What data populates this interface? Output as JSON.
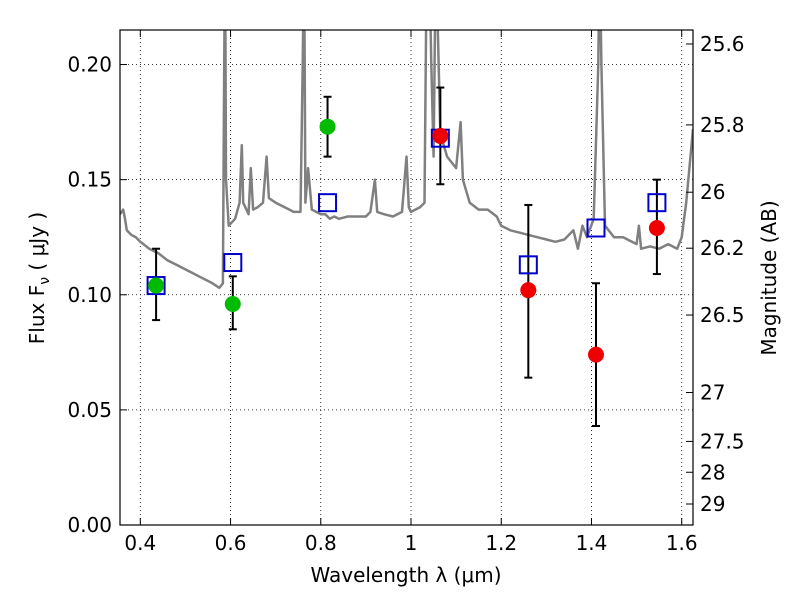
{
  "chart_data": {
    "type": "scatter",
    "xlabel": "Wavelength  λ (μm)",
    "ylabel": "Flux  F",
    "ylabel_sub": "ν",
    "ylabel_unit": "  ( μJy )",
    "ylabel_right": "Magnitude (AB)",
    "xlim": [
      0.355,
      1.625
    ],
    "ylim": [
      0.0,
      0.215
    ],
    "x_ticks": [
      0.4,
      0.6,
      0.8,
      1.0,
      1.2,
      1.4,
      1.6
    ],
    "x_tick_labels": [
      "0.4",
      "0.6",
      "0.8",
      "1",
      "1.2",
      "1.4",
      "1.6"
    ],
    "y_ticks": [
      0.0,
      0.05,
      0.1,
      0.15,
      0.2
    ],
    "y_tick_labels": [
      "0.00",
      "0.05",
      "0.10",
      "0.15",
      "0.20"
    ],
    "right_ticks": [
      {
        "label": "25.6",
        "mag": 25.6
      },
      {
        "label": "25.8",
        "mag": 25.8
      },
      {
        "label": "26",
        "mag": 26.0
      },
      {
        "label": "26.2",
        "mag": 26.2
      },
      {
        "label": "26.5",
        "mag": 26.5
      },
      {
        "label": "27",
        "mag": 27.0
      },
      {
        "label": "27.5",
        "mag": 27.5
      },
      {
        "label": "28",
        "mag": 28.0
      },
      {
        "label": "29",
        "mag": 29.0
      }
    ],
    "grid": true,
    "colors": {
      "model": "#808080",
      "green": "#00bb00",
      "red": "#ee0000",
      "square": "#0000cc",
      "error": "#000000"
    },
    "model_spectrum": [
      [
        0.355,
        0.135
      ],
      [
        0.362,
        0.137
      ],
      [
        0.366,
        0.133
      ],
      [
        0.37,
        0.128
      ],
      [
        0.38,
        0.126
      ],
      [
        0.39,
        0.125
      ],
      [
        0.4,
        0.123
      ],
      [
        0.42,
        0.12
      ],
      [
        0.44,
        0.118
      ],
      [
        0.46,
        0.115
      ],
      [
        0.48,
        0.113
      ],
      [
        0.5,
        0.111
      ],
      [
        0.52,
        0.109
      ],
      [
        0.54,
        0.107
      ],
      [
        0.56,
        0.105
      ],
      [
        0.575,
        0.103
      ],
      [
        0.583,
        0.105
      ],
      [
        0.586,
        0.2
      ],
      [
        0.588,
        0.25
      ],
      [
        0.59,
        0.15
      ],
      [
        0.596,
        0.13
      ],
      [
        0.61,
        0.133
      ],
      [
        0.62,
        0.14
      ],
      [
        0.625,
        0.165
      ],
      [
        0.628,
        0.14
      ],
      [
        0.64,
        0.135
      ],
      [
        0.645,
        0.155
      ],
      [
        0.65,
        0.137
      ],
      [
        0.66,
        0.138
      ],
      [
        0.672,
        0.14
      ],
      [
        0.68,
        0.16
      ],
      [
        0.685,
        0.142
      ],
      [
        0.7,
        0.14
      ],
      [
        0.72,
        0.138
      ],
      [
        0.74,
        0.136
      ],
      [
        0.755,
        0.136
      ],
      [
        0.76,
        0.2
      ],
      [
        0.763,
        0.25
      ],
      [
        0.766,
        0.14
      ],
      [
        0.772,
        0.155
      ],
      [
        0.78,
        0.137
      ],
      [
        0.79,
        0.136
      ],
      [
        0.8,
        0.135
      ],
      [
        0.81,
        0.135
      ],
      [
        0.82,
        0.133
      ],
      [
        0.83,
        0.134
      ],
      [
        0.84,
        0.133
      ],
      [
        0.86,
        0.134
      ],
      [
        0.88,
        0.134
      ],
      [
        0.9,
        0.134
      ],
      [
        0.91,
        0.136
      ],
      [
        0.92,
        0.15
      ],
      [
        0.925,
        0.136
      ],
      [
        0.94,
        0.135
      ],
      [
        0.96,
        0.134
      ],
      [
        0.98,
        0.136
      ],
      [
        0.99,
        0.16
      ],
      [
        0.995,
        0.138
      ],
      [
        1.0,
        0.136
      ],
      [
        1.02,
        0.138
      ],
      [
        1.03,
        0.14
      ],
      [
        1.035,
        0.25
      ],
      [
        1.04,
        0.25
      ],
      [
        1.045,
        0.2
      ],
      [
        1.05,
        0.16
      ],
      [
        1.055,
        0.25
      ],
      [
        1.06,
        0.21
      ],
      [
        1.065,
        0.17
      ],
      [
        1.08,
        0.16
      ],
      [
        1.1,
        0.155
      ],
      [
        1.11,
        0.175
      ],
      [
        1.115,
        0.15
      ],
      [
        1.13,
        0.14
      ],
      [
        1.15,
        0.137
      ],
      [
        1.17,
        0.137
      ],
      [
        1.19,
        0.134
      ],
      [
        1.2,
        0.13
      ],
      [
        1.22,
        0.128
      ],
      [
        1.24,
        0.127
      ],
      [
        1.26,
        0.126
      ],
      [
        1.28,
        0.125
      ],
      [
        1.3,
        0.124
      ],
      [
        1.32,
        0.123
      ],
      [
        1.34,
        0.124
      ],
      [
        1.35,
        0.126
      ],
      [
        1.36,
        0.128
      ],
      [
        1.37,
        0.12
      ],
      [
        1.38,
        0.13
      ],
      [
        1.39,
        0.125
      ],
      [
        1.405,
        0.133
      ],
      [
        1.415,
        0.2
      ],
      [
        1.418,
        0.25
      ],
      [
        1.422,
        0.2
      ],
      [
        1.43,
        0.13
      ],
      [
        1.45,
        0.125
      ],
      [
        1.47,
        0.125
      ],
      [
        1.5,
        0.122
      ],
      [
        1.505,
        0.13
      ],
      [
        1.51,
        0.12
      ],
      [
        1.53,
        0.121
      ],
      [
        1.55,
        0.12
      ],
      [
        1.57,
        0.122
      ],
      [
        1.59,
        0.12
      ],
      [
        1.6,
        0.125
      ],
      [
        1.61,
        0.14
      ],
      [
        1.625,
        0.172
      ]
    ],
    "green_points": [
      {
        "x": 0.435,
        "y": 0.104
      },
      {
        "x": 0.605,
        "y": 0.096
      },
      {
        "x": 0.815,
        "y": 0.173
      }
    ],
    "red_points": [
      {
        "x": 1.065,
        "y": 0.169
      },
      {
        "x": 1.26,
        "y": 0.102
      },
      {
        "x": 1.41,
        "y": 0.074
      },
      {
        "x": 1.545,
        "y": 0.129
      }
    ],
    "square_points": [
      {
        "x": 0.435,
        "y": 0.104
      },
      {
        "x": 0.605,
        "y": 0.114
      },
      {
        "x": 0.815,
        "y": 0.14
      },
      {
        "x": 1.065,
        "y": 0.168
      },
      {
        "x": 1.26,
        "y": 0.113
      },
      {
        "x": 1.41,
        "y": 0.129
      },
      {
        "x": 1.545,
        "y": 0.14
      }
    ],
    "error_bars": [
      {
        "x": 0.435,
        "low": 0.089,
        "high": 0.12
      },
      {
        "x": 0.605,
        "low": 0.085,
        "high": 0.108
      },
      {
        "x": 0.815,
        "low": 0.16,
        "high": 0.186
      },
      {
        "x": 1.065,
        "low": 0.148,
        "high": 0.19
      },
      {
        "x": 1.26,
        "low": 0.064,
        "high": 0.139
      },
      {
        "x": 1.41,
        "low": 0.043,
        "high": 0.105
      },
      {
        "x": 1.545,
        "low": 0.109,
        "high": 0.15
      }
    ]
  }
}
